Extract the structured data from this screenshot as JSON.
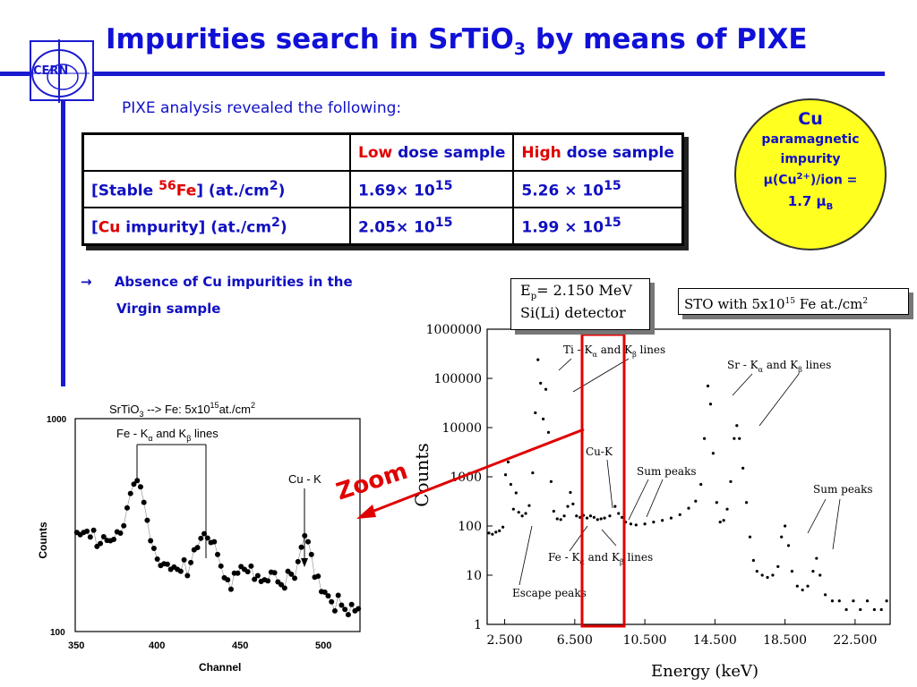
{
  "title": {
    "main": "Impurities search in SrTiO",
    "sub": "3",
    "rest": " by means of PIXE"
  },
  "logo": {
    "text": "CERN"
  },
  "subtitle": "PIXE analysis revealed the following:",
  "table": {
    "headers": {
      "low_a": "Low",
      "low_b": " dose sample",
      "high_a": "High",
      "high_b": " dose sample"
    },
    "rows": [
      {
        "label_pre": "[Stable ",
        "label_sup": "56",
        "label_el": "Fe",
        "label_post": "]  (at./cm",
        "unit_sup": "2",
        "unit_close": ")",
        "low": "1.69× 10",
        "low_exp": "15",
        "high": "5.26 × 10",
        "high_exp": "15"
      },
      {
        "label_pre": "[",
        "label_el": "Cu",
        "label_post": " impurity] (at./cm",
        "unit_sup": "2",
        "unit_close": ")",
        "low": "2.05× 10",
        "low_exp": "15",
        "high": "1.99 × 10",
        "high_exp": "15"
      }
    ]
  },
  "circle": {
    "l1": "Cu",
    "l2": "paramagnetic",
    "l3": "impurity",
    "l4a": "μ(Cu",
    "l4sup": "2+",
    "l4b": ")/ion =",
    "l5": "1.7  μ",
    "l5sub": "B"
  },
  "bullet": {
    "arrow": "→",
    "line1": "Absence of Cu impurities in the",
    "line2": "Virgin sample"
  },
  "zoom": "Zoom",
  "chart_data": [
    {
      "type": "scatter",
      "title": "SrTiO3 --> Fe: 5x10^15 at./cm^2",
      "xlabel": "Channel",
      "ylabel": "Counts",
      "yscale": "log",
      "xlim": [
        350,
        520
      ],
      "ylim": [
        100,
        1000
      ],
      "xticks": [
        "350",
        "400",
        "450",
        "500"
      ],
      "yticks": [
        "100",
        "1000"
      ],
      "annotations": [
        "Fe - Kα and Kβ lines",
        "Cu - K"
      ],
      "points": [
        [
          351,
          292
        ],
        [
          353,
          285
        ],
        [
          355,
          292
        ],
        [
          357,
          296
        ],
        [
          359,
          278
        ],
        [
          361,
          299
        ],
        [
          363,
          251
        ],
        [
          365,
          259
        ],
        [
          367,
          279
        ],
        [
          369,
          268
        ],
        [
          371,
          267
        ],
        [
          373,
          271
        ],
        [
          375,
          294
        ],
        [
          377,
          290
        ],
        [
          379,
          314
        ],
        [
          381,
          381
        ],
        [
          383,
          445
        ],
        [
          385,
          492
        ],
        [
          387,
          512
        ],
        [
          389,
          478
        ],
        [
          391,
          404
        ],
        [
          393,
          333
        ],
        [
          395,
          267
        ],
        [
          397,
          246
        ],
        [
          399,
          219
        ],
        [
          401,
          204
        ],
        [
          403,
          208
        ],
        [
          405,
          207
        ],
        [
          407,
          196
        ],
        [
          409,
          201
        ],
        [
          411,
          196
        ],
        [
          413,
          192
        ],
        [
          415,
          217
        ],
        [
          417,
          183
        ],
        [
          419,
          211
        ],
        [
          421,
          242
        ],
        [
          423,
          248
        ],
        [
          425,
          274
        ],
        [
          427,
          288
        ],
        [
          429,
          275
        ],
        [
          431,
          262
        ],
        [
          433,
          264
        ],
        [
          435,
          230
        ],
        [
          437,
          203
        ],
        [
          439,
          179
        ],
        [
          441,
          175
        ],
        [
          443,
          158
        ],
        [
          445,
          188
        ],
        [
          447,
          188
        ],
        [
          449,
          202
        ],
        [
          451,
          196
        ],
        [
          453,
          191
        ],
        [
          455,
          203
        ],
        [
          457,
          176
        ],
        [
          459,
          183
        ],
        [
          461,
          172
        ],
        [
          463,
          175
        ],
        [
          465,
          173
        ],
        [
          467,
          190
        ],
        [
          469,
          189
        ],
        [
          471,
          171
        ],
        [
          473,
          166
        ],
        [
          475,
          160
        ],
        [
          477,
          192
        ],
        [
          479,
          186
        ],
        [
          481,
          178
        ],
        [
          483,
          213
        ],
        [
          485,
          249
        ],
        [
          487,
          282
        ],
        [
          489,
          264
        ],
        [
          491,
          230
        ],
        [
          493,
          180
        ],
        [
          495,
          182
        ],
        [
          497,
          154
        ],
        [
          499,
          153
        ],
        [
          501,
          147
        ],
        [
          503,
          138
        ],
        [
          505,
          125
        ],
        [
          507,
          148
        ],
        [
          509,
          133
        ],
        [
          511,
          127
        ],
        [
          513,
          120
        ],
        [
          515,
          134
        ],
        [
          517,
          125
        ],
        [
          519,
          128
        ]
      ]
    },
    {
      "type": "scatter",
      "xlabel": "Energy (keV)",
      "ylabel": "Counts",
      "yscale": "log",
      "xlim": [
        1.5,
        24.5
      ],
      "ylim": [
        1,
        1000000
      ],
      "xticks": [
        "2.500",
        "6.500",
        "10.500",
        "14.500",
        "18.500",
        "22.500"
      ],
      "yticks": [
        "1",
        "10",
        "100",
        "1000",
        "10000",
        "100000",
        "1000000"
      ],
      "annotations": [
        "Ep = 2.150 MeV",
        "Si(Li) detector",
        "STO with 5x10^15 Fe at./cm^2",
        "Ti - Kα and Kβ lines",
        "Sr - Kα and Kβ lines",
        "Cu-K",
        "Sum peaks",
        "Sum peaks",
        "Fe - Kα and Kβ lines",
        "Escape peaks"
      ],
      "points": [
        [
          1.6,
          72
        ],
        [
          1.8,
          68
        ],
        [
          2.0,
          75
        ],
        [
          2.2,
          80
        ],
        [
          2.4,
          95
        ],
        [
          2.55,
          1100
        ],
        [
          2.7,
          2000
        ],
        [
          2.85,
          700
        ],
        [
          3.0,
          220
        ],
        [
          3.15,
          470
        ],
        [
          3.3,
          190
        ],
        [
          3.5,
          160
        ],
        [
          3.7,
          180
        ],
        [
          3.9,
          260
        ],
        [
          4.1,
          1200
        ],
        [
          4.25,
          20000
        ],
        [
          4.4,
          240000
        ],
        [
          4.55,
          80000
        ],
        [
          4.7,
          15000
        ],
        [
          4.85,
          60000
        ],
        [
          5.0,
          8000
        ],
        [
          5.15,
          800
        ],
        [
          5.3,
          200
        ],
        [
          5.5,
          140
        ],
        [
          5.7,
          135
        ],
        [
          5.9,
          160
        ],
        [
          6.1,
          250
        ],
        [
          6.25,
          480
        ],
        [
          6.4,
          280
        ],
        [
          6.6,
          160
        ],
        [
          6.8,
          150
        ],
        [
          7.0,
          165
        ],
        [
          7.2,
          145
        ],
        [
          7.4,
          160
        ],
        [
          7.6,
          150
        ],
        [
          7.8,
          135
        ],
        [
          8.0,
          140
        ],
        [
          8.2,
          145
        ],
        [
          8.5,
          160
        ],
        [
          8.8,
          250
        ],
        [
          9.0,
          180
        ],
        [
          9.2,
          150
        ],
        [
          9.4,
          120
        ],
        [
          9.7,
          110
        ],
        [
          10.0,
          105
        ],
        [
          10.5,
          110
        ],
        [
          11.0,
          120
        ],
        [
          11.5,
          130
        ],
        [
          12.0,
          145
        ],
        [
          12.5,
          170
        ],
        [
          13.0,
          230
        ],
        [
          13.4,
          320
        ],
        [
          13.7,
          700
        ],
        [
          13.9,
          6000
        ],
        [
          14.1,
          70000
        ],
        [
          14.25,
          30000
        ],
        [
          14.4,
          3000
        ],
        [
          14.6,
          300
        ],
        [
          14.8,
          120
        ],
        [
          15.0,
          130
        ],
        [
          15.2,
          220
        ],
        [
          15.4,
          800
        ],
        [
          15.6,
          6000
        ],
        [
          15.75,
          11000
        ],
        [
          15.9,
          6000
        ],
        [
          16.1,
          1500
        ],
        [
          16.3,
          300
        ],
        [
          16.5,
          60
        ],
        [
          16.7,
          20
        ],
        [
          16.9,
          12
        ],
        [
          17.2,
          10
        ],
        [
          17.5,
          9
        ],
        [
          17.8,
          10
        ],
        [
          18.1,
          15
        ],
        [
          18.3,
          60
        ],
        [
          18.5,
          100
        ],
        [
          18.7,
          40
        ],
        [
          18.9,
          12
        ],
        [
          19.2,
          6
        ],
        [
          19.5,
          5
        ],
        [
          19.8,
          6
        ],
        [
          20.1,
          12
        ],
        [
          20.3,
          22
        ],
        [
          20.5,
          10
        ],
        [
          20.8,
          4
        ],
        [
          21.2,
          3
        ],
        [
          21.6,
          3
        ],
        [
          22.0,
          2
        ],
        [
          22.4,
          3
        ],
        [
          22.8,
          2
        ],
        [
          23.2,
          3
        ],
        [
          23.6,
          2
        ],
        [
          24.0,
          2
        ],
        [
          24.3,
          3
        ]
      ]
    }
  ],
  "left_chart_text": {
    "title_a": "SrTiO",
    "title_sub": "3",
    "title_b": " --> Fe: 5x10",
    "title_sup": "15",
    "title_c": "at./cm",
    "title_sup2": "2",
    "annot_fe": "Fe - K",
    "annot_fe_a": "α",
    "annot_fe_mid": " and K",
    "annot_fe_b": "β",
    "annot_fe_end": " lines",
    "annot_cu": "Cu - K",
    "xlabel": "Channel",
    "ylabel": "Counts"
  },
  "right_chart_text": {
    "ep_a": "E",
    "ep_sub": "p",
    "ep_b": "= 2.150 MeV",
    "detector": "Si(Li) detector",
    "sto_a": "STO with 5x10",
    "sto_sup": "15",
    "sto_b": " Fe at./cm",
    "sto_sup2": "2",
    "ti_a": "Ti - K",
    "ti_alpha": "α",
    "ti_mid": " and K",
    "ti_beta": "β",
    "ti_end": " lines",
    "sr_a": "Sr - K",
    "sr_alpha": "α",
    "sr_mid": " and K",
    "sr_beta": "β",
    "sr_end": " lines",
    "cuk": "Cu-K",
    "sum1": "Sum peaks",
    "sum2": "Sum peaks",
    "fe_a": "Fe - K",
    "fe_alpha": "α",
    "fe_mid": " and K",
    "fe_beta": "β",
    "fe_end": " lines",
    "escape": "Escape peaks",
    "xlabel": "Energy (keV)",
    "ylabel": "Counts"
  }
}
